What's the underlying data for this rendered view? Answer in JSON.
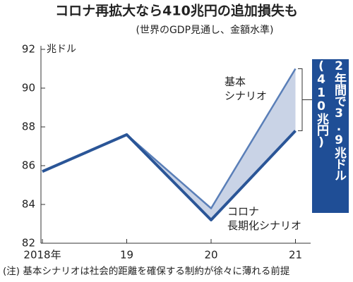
{
  "chart_data": {
    "type": "line",
    "title": "コロナ再拡大なら410兆円の追加損失も",
    "subtitle": "(世界のGDP見通し、金額水準)",
    "y_unit": "兆ドル",
    "categories": [
      "2018年",
      "19",
      "20",
      "21"
    ],
    "series": [
      {
        "name": "基本\nシナリオ",
        "color": "#5a7fb8",
        "values": [
          85.7,
          87.6,
          83.8,
          91.0
        ]
      },
      {
        "name": "コロナ\n長期化シナリオ",
        "color": "#2a5597",
        "values": [
          85.7,
          87.6,
          83.2,
          87.8
        ]
      }
    ],
    "gap_color": "#c9d3e6",
    "annotation": "2年間で3.9兆ドル(410兆円)",
    "annotation_color": "#1f4e96",
    "note": "(注) 基本シナリオは社会的距離を確保する制約が徐々に薄れる前提",
    "ylim": [
      82,
      92
    ],
    "yticks": [
      82,
      84,
      86,
      88,
      90,
      92
    ],
    "grid": false
  }
}
